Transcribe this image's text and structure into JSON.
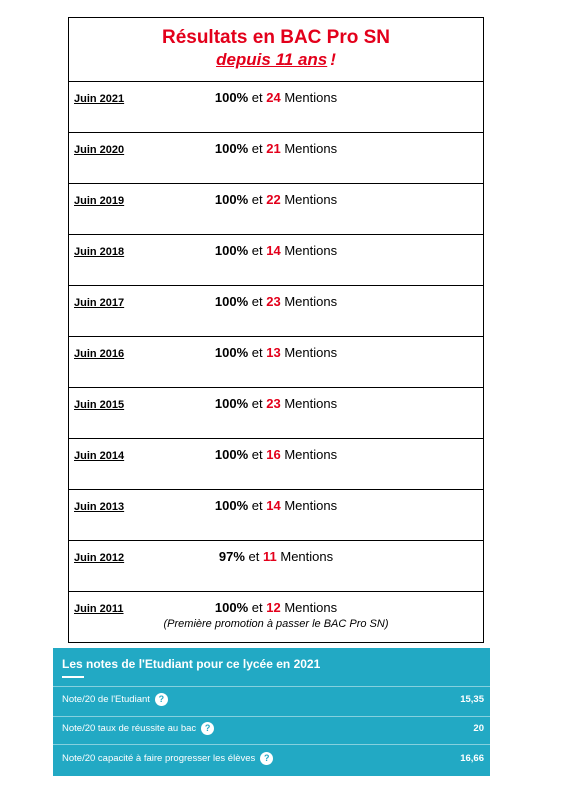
{
  "title": {
    "line1": "Résultats en BAC Pro SN",
    "line2": "depuis 11 ans",
    "excl": "!"
  },
  "rows": [
    {
      "year": "Juin 2021",
      "pct": "100%",
      "conj": "et",
      "mentions": "24",
      "word": "Mentions"
    },
    {
      "year": "Juin 2020",
      "pct": "100%",
      "conj": "et",
      "mentions": "21",
      "word": "Mentions"
    },
    {
      "year": "Juin 2019",
      "pct": "100%",
      "conj": "et",
      "mentions": "22",
      "word": "Mentions"
    },
    {
      "year": "Juin 2018",
      "pct": "100%",
      "conj": "et",
      "mentions": "14",
      "word": "Mentions"
    },
    {
      "year": "Juin 2017",
      "pct": "100%",
      "conj": "et",
      "mentions": "23",
      "word": "Mentions"
    },
    {
      "year": "Juin 2016",
      "pct": "100%",
      "conj": "et",
      "mentions": "13",
      "word": "Mentions"
    },
    {
      "year": "Juin 2015",
      "pct": "100%",
      "conj": "et",
      "mentions": "23",
      "word": "Mentions"
    },
    {
      "year": "Juin 2014",
      "pct": "100%",
      "conj": "et",
      "mentions": "16",
      "word": "Mentions"
    },
    {
      "year": "Juin 2013",
      "pct": "100%",
      "conj": "et",
      "mentions": "14",
      "word": "Mentions"
    },
    {
      "year": "Juin 2012",
      "pct": "97%",
      "conj": "et",
      "mentions": "11",
      "word": "Mentions"
    },
    {
      "year": "Juin 2011",
      "pct": "100%",
      "conj": "et",
      "mentions": "12",
      "word": "Mentions",
      "note": "(Première promotion à passer le BAC Pro SN)"
    }
  ],
  "panel": {
    "title": "Les notes de l'Etudiant pour ce lycée en 2021",
    "help_icon": "?",
    "items": [
      {
        "label": "Note/20 de l'Etudiant",
        "value": "15,35"
      },
      {
        "label": "Note/20 taux de réussite au bac",
        "value": "20"
      },
      {
        "label": "Note/20 capacité à faire progresser les élèves",
        "value": "16,66"
      }
    ],
    "colors": {
      "background": "#22a9c4",
      "accent_red": "#e3001b"
    }
  }
}
